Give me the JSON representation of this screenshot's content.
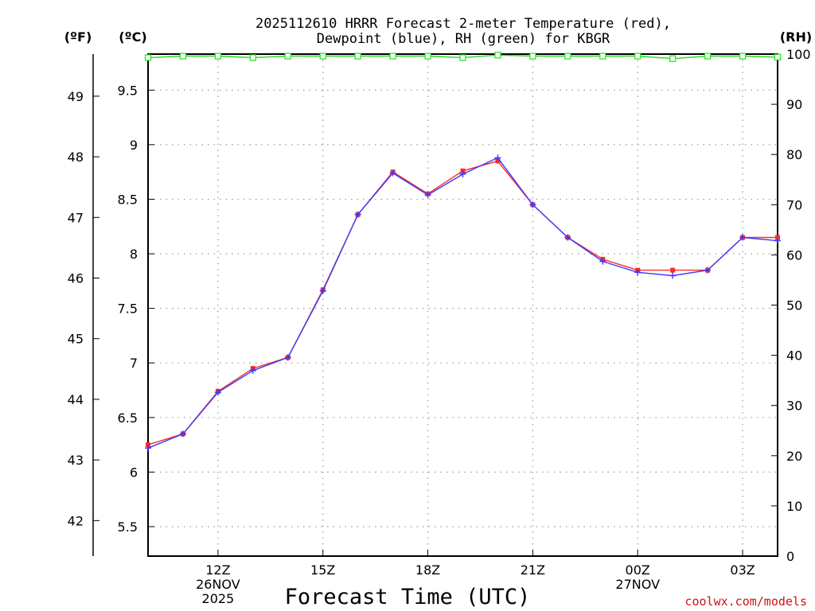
{
  "chart_data": {
    "type": "line",
    "title_lines": [
      "2025112610 HRRR Forecast 2-meter Temperature (red),",
      "Dewpoint (blue), RH (green) for KBGR"
    ],
    "xlabel": "Forecast Time (UTC)",
    "credit": "coolwx.com/models",
    "axis_units": {
      "fahrenheit": "(ºF)",
      "celsius": "(ºC)",
      "rh": "(RH)"
    },
    "x_hours": [
      10,
      11,
      12,
      13,
      14,
      15,
      16,
      17,
      18,
      19,
      20,
      21,
      22,
      23,
      24,
      25,
      26,
      27,
      28
    ],
    "xlim": [
      10,
      28
    ],
    "x_ticks": [
      {
        "hour": 12,
        "lines": [
          "12Z",
          "26NOV",
          "2025"
        ]
      },
      {
        "hour": 15,
        "lines": [
          "15Z"
        ]
      },
      {
        "hour": 18,
        "lines": [
          "18Z"
        ]
      },
      {
        "hour": 21,
        "lines": [
          "21Z"
        ]
      },
      {
        "hour": 24,
        "lines": [
          "00Z",
          "27NOV"
        ]
      },
      {
        "hour": 27,
        "lines": [
          "03Z"
        ]
      }
    ],
    "celsius_ylim": [
      5.23,
      9.83
    ],
    "celsius_ticks": [
      "5.5",
      "6",
      "6.5",
      "7",
      "7.5",
      "8",
      "8.5",
      "9",
      "9.5"
    ],
    "fahrenheit_ticks": [
      "42",
      "43",
      "44",
      "45",
      "46",
      "47",
      "48",
      "49"
    ],
    "rh_ylim": [
      0,
      100
    ],
    "rh_ticks": [
      "0",
      "10",
      "20",
      "30",
      "40",
      "50",
      "60",
      "70",
      "80",
      "90",
      "100"
    ],
    "series": [
      {
        "name": "Temperature",
        "unit": "C",
        "color": "#ff2a2a",
        "values": [
          6.25,
          6.35,
          6.74,
          6.95,
          7.05,
          7.67,
          8.36,
          8.75,
          8.55,
          8.76,
          8.85,
          8.45,
          8.15,
          7.95,
          7.85,
          7.85,
          7.85,
          8.15,
          8.15
        ]
      },
      {
        "name": "Dewpoint",
        "unit": "C",
        "color": "#3a3aff",
        "values": [
          6.22,
          6.35,
          6.73,
          6.93,
          7.05,
          7.66,
          8.36,
          8.74,
          8.54,
          8.73,
          8.88,
          8.45,
          8.15,
          7.93,
          7.83,
          7.8,
          7.85,
          8.15,
          8.12
        ]
      },
      {
        "name": "RH",
        "unit": "%",
        "color": "#22dd22",
        "values": [
          99.3,
          99.6,
          99.6,
          99.3,
          99.6,
          99.6,
          99.6,
          99.6,
          99.6,
          99.3,
          99.8,
          99.6,
          99.6,
          99.6,
          99.6,
          99.1,
          99.6,
          99.6,
          99.4
        ]
      }
    ]
  }
}
